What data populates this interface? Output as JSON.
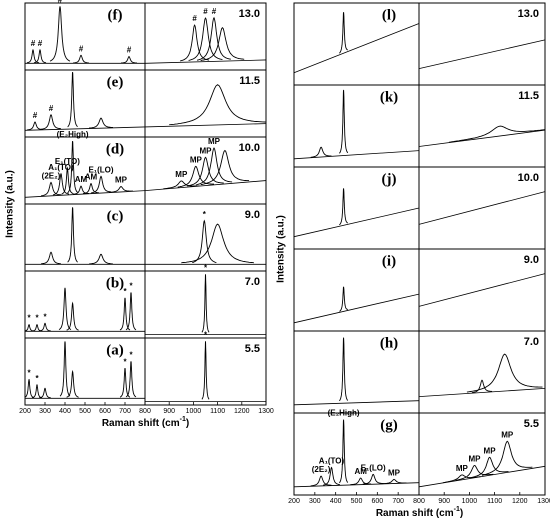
{
  "left": {
    "y_label": "Intensity (a.u.)",
    "x_label": "Raman shift (cm",
    "x_label_sup": "-1",
    "x_label_end": ")",
    "xlim_low": [
      200,
      800
    ],
    "xlim_high": [
      800,
      1300
    ],
    "xticks": [
      200,
      300,
      400,
      500,
      600,
      700,
      800,
      900,
      1000,
      1100,
      1200,
      1300
    ],
    "rows": [
      {
        "letter": "(f)",
        "value": "13.0",
        "low": {
          "base": [
            0.1,
            0.1
          ],
          "peaks": [
            {
              "x": 240,
              "h": 0.2,
              "w": 6,
              "label": "#"
            },
            {
              "x": 275,
              "h": 0.2,
              "w": 6,
              "label": "#"
            },
            {
              "x": 375,
              "h": 0.85,
              "w": 10,
              "label": "#"
            },
            {
              "x": 480,
              "h": 0.12,
              "w": 8,
              "label": "#"
            },
            {
              "x": 720,
              "h": 0.1,
              "w": 8,
              "label": "#"
            }
          ]
        },
        "high": {
          "base": [
            0.1,
            0.15
          ],
          "peaks": [
            {
              "x": 1005,
              "h": 0.55,
              "w": 12,
              "label": "#"
            },
            {
              "x": 1050,
              "h": 0.65,
              "w": 14,
              "label": "#"
            },
            {
              "x": 1085,
              "h": 0.65,
              "w": 14,
              "label": "#"
            },
            {
              "x": 1120,
              "h": 0.5,
              "w": 18
            }
          ]
        }
      },
      {
        "letter": "(e)",
        "value": "11.5",
        "low": {
          "base": [
            0.1,
            0.15
          ],
          "peaks": [
            {
              "x": 250,
              "h": 0.12,
              "w": 8,
              "label": "#"
            },
            {
              "x": 330,
              "h": 0.22,
              "w": 10,
              "label": "#"
            },
            {
              "x": 438,
              "h": 0.85,
              "w": 5
            },
            {
              "x": 580,
              "h": 0.15,
              "w": 12
            }
          ]
        },
        "high": {
          "base": [
            0.15,
            0.2
          ],
          "peaks": [
            {
              "x": 1100,
              "h": 0.6,
              "w": 40
            }
          ]
        }
      },
      {
        "letter": "(d)",
        "value": "10.0",
        "low": {
          "base": [
            0.1,
            0.2
          ],
          "peaks": [
            {
              "x": 330,
              "h": 0.2,
              "w": 10,
              "label": "(2E₂)"
            },
            {
              "x": 380,
              "h": 0.32,
              "w": 8,
              "label": "A₁(TO)"
            },
            {
              "x": 412,
              "h": 0.4,
              "w": 6,
              "label": "E₁(TO)"
            },
            {
              "x": 438,
              "h": 0.8,
              "w": 5,
              "label": "(E₂High)"
            },
            {
              "x": 480,
              "h": 0.12,
              "w": 8,
              "label": "AM"
            },
            {
              "x": 530,
              "h": 0.15,
              "w": 8,
              "label": "AM"
            },
            {
              "x": 580,
              "h": 0.25,
              "w": 10,
              "label": "E₁(LO)"
            },
            {
              "x": 680,
              "h": 0.08,
              "w": 12,
              "label": "MP"
            }
          ]
        },
        "high": {
          "base": [
            0.2,
            0.35
          ],
          "peaks": [
            {
              "x": 950,
              "h": 0.1,
              "w": 15,
              "label": "MP"
            },
            {
              "x": 1010,
              "h": 0.3,
              "w": 15,
              "label": "MP"
            },
            {
              "x": 1050,
              "h": 0.42,
              "w": 15,
              "label": "MP"
            },
            {
              "x": 1085,
              "h": 0.55,
              "w": 15,
              "label": "MP"
            },
            {
              "x": 1130,
              "h": 0.5,
              "w": 20
            }
          ]
        }
      },
      {
        "letter": "(c)",
        "value": "9.0",
        "low": {
          "base": [
            0.1,
            0.1
          ],
          "peaks": [
            {
              "x": 330,
              "h": 0.18,
              "w": 10
            },
            {
              "x": 438,
              "h": 0.85,
              "w": 5
            },
            {
              "x": 580,
              "h": 0.15,
              "w": 12
            }
          ]
        },
        "high": {
          "base": [
            0.1,
            0.1
          ],
          "peaks": [
            {
              "x": 1045,
              "h": 0.65,
              "w": 10,
              "label": "*"
            },
            {
              "x": 1100,
              "h": 0.6,
              "w": 30
            }
          ]
        }
      },
      {
        "letter": "(b)",
        "value": "7.0",
        "low": {
          "base": [
            0.1,
            0.1
          ],
          "peaks": [
            {
              "x": 220,
              "h": 0.1,
              "w": 5,
              "label": "*"
            },
            {
              "x": 260,
              "h": 0.1,
              "w": 5,
              "label": "*"
            },
            {
              "x": 300,
              "h": 0.12,
              "w": 6,
              "label": "*"
            },
            {
              "x": 400,
              "h": 0.65,
              "w": 6
            },
            {
              "x": 438,
              "h": 0.42,
              "w": 6
            },
            {
              "x": 700,
              "h": 0.5,
              "w": 5,
              "label": "*"
            },
            {
              "x": 730,
              "h": 0.58,
              "w": 5,
              "label": "*"
            }
          ]
        },
        "high": {
          "base": [
            0.05,
            0.05
          ],
          "peaks": [
            {
              "x": 1050,
              "h": 0.9,
              "w": 3,
              "label": "*"
            }
          ]
        }
      },
      {
        "letter": "(a)",
        "value": "5.5",
        "low": {
          "base": [
            0.1,
            0.1
          ],
          "peaks": [
            {
              "x": 220,
              "h": 0.28,
              "w": 5,
              "label": "*"
            },
            {
              "x": 260,
              "h": 0.2,
              "w": 5,
              "label": "*"
            },
            {
              "x": 300,
              "h": 0.15,
              "w": 6
            },
            {
              "x": 400,
              "h": 0.85,
              "w": 5
            },
            {
              "x": 438,
              "h": 0.4,
              "w": 6
            },
            {
              "x": 700,
              "h": 0.45,
              "w": 5,
              "label": "*"
            },
            {
              "x": 730,
              "h": 0.55,
              "w": 5,
              "label": "*"
            }
          ]
        },
        "high": {
          "base": [
            0.05,
            0.05
          ],
          "peaks": [
            {
              "x": 1050,
              "h": 0.9,
              "w": 3,
              "label": "*"
            }
          ]
        }
      }
    ]
  },
  "right": {
    "y_label": "Intensity (a.u.)",
    "x_label": "Raman shift (cm",
    "x_label_sup": "-1",
    "x_label_end": ")",
    "xlim_low": [
      200,
      800
    ],
    "xlim_high": [
      800,
      1300
    ],
    "xticks": [
      200,
      300,
      400,
      500,
      600,
      700,
      800,
      900,
      1000,
      1100,
      1200,
      1300
    ],
    "rows": [
      {
        "letter": "(l)",
        "value": "13.0",
        "low": {
          "base": [
            0.15,
            0.75
          ],
          "peaks": [
            {
              "x": 438,
              "h": 0.5,
              "w": 4
            }
          ]
        },
        "high": {
          "base": [
            0.2,
            0.55
          ],
          "peaks": []
        }
      },
      {
        "letter": "(k)",
        "value": "11.5",
        "low": {
          "base": [
            0.1,
            0.2
          ],
          "peaks": [
            {
              "x": 330,
              "h": 0.12,
              "w": 10
            },
            {
              "x": 438,
              "h": 0.8,
              "w": 4
            }
          ]
        },
        "high": {
          "base": [
            0.25,
            0.45
          ],
          "peaks": [
            {
              "x": 1120,
              "h": 0.12,
              "w": 40
            }
          ]
        }
      },
      {
        "letter": "(j)",
        "value": "10.0",
        "low": {
          "base": [
            0.15,
            0.5
          ],
          "peaks": [
            {
              "x": 438,
              "h": 0.45,
              "w": 4
            }
          ]
        },
        "high": {
          "base": [
            0.3,
            0.7
          ],
          "peaks": []
        }
      },
      {
        "letter": "(i)",
        "value": "9.0",
        "low": {
          "base": [
            0.1,
            0.45
          ],
          "peaks": [
            {
              "x": 438,
              "h": 0.3,
              "w": 4
            }
          ]
        },
        "high": {
          "base": [
            0.3,
            0.7
          ],
          "peaks": []
        }
      },
      {
        "letter": "(h)",
        "value": "7.0",
        "low": {
          "base": [
            0.1,
            0.15
          ],
          "peaks": [
            {
              "x": 438,
              "h": 0.8,
              "w": 4
            }
          ]
        },
        "high": {
          "base": [
            0.2,
            0.3
          ],
          "peaks": [
            {
              "x": 1050,
              "h": 0.15,
              "w": 8
            },
            {
              "x": 1140,
              "h": 0.45,
              "w": 30
            }
          ]
        }
      },
      {
        "letter": "(g)",
        "value": "5.5",
        "low": {
          "base": [
            0.1,
            0.15
          ],
          "peaks": [
            {
              "x": 330,
              "h": 0.12,
              "w": 10,
              "label": "(2E₂)"
            },
            {
              "x": 380,
              "h": 0.22,
              "w": 8,
              "label": "A₁(TO)"
            },
            {
              "x": 438,
              "h": 0.8,
              "w": 4,
              "label": "(E₂High)"
            },
            {
              "x": 520,
              "h": 0.08,
              "w": 10,
              "label": "AM"
            },
            {
              "x": 580,
              "h": 0.12,
              "w": 10,
              "label": "E₁(LO)"
            },
            {
              "x": 680,
              "h": 0.05,
              "w": 12,
              "label": "MP"
            }
          ]
        },
        "high": {
          "base": [
            0.1,
            0.35
          ],
          "peaks": [
            {
              "x": 970,
              "h": 0.06,
              "w": 15,
              "label": "MP"
            },
            {
              "x": 1020,
              "h": 0.15,
              "w": 15,
              "label": "MP"
            },
            {
              "x": 1080,
              "h": 0.22,
              "w": 15,
              "label": "MP"
            },
            {
              "x": 1150,
              "h": 0.38,
              "w": 20,
              "label": "MP"
            }
          ]
        }
      }
    ]
  }
}
